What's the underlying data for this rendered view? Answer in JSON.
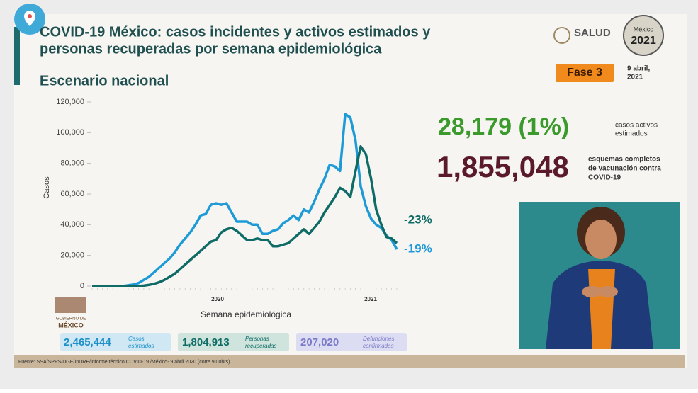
{
  "header": {
    "title": [
      "COVID-19 México: casos incidentes y activos estimados y",
      "personas recuperadas por semana epidemiológica"
    ],
    "subtitle": "Escenario nacional",
    "ministry": "SALUD",
    "logo": [
      "México",
      "2021"
    ],
    "phase": "Fase 3",
    "date": [
      "9 abril,",
      "2021"
    ]
  },
  "stats": {
    "active": {
      "value": "28,179 (1%)",
      "label": [
        "casos activos",
        "estimados"
      ]
    },
    "vaccination": {
      "value": "1,855,048",
      "label": [
        "esquemas completos",
        "de vacunación contra",
        "COVID-19"
      ]
    }
  },
  "chart_data": {
    "type": "line",
    "ylabel": "Casos",
    "xlabel": "Semana epidemiológica",
    "year_labels": [
      "2020",
      "2021"
    ],
    "categories": [
      null,
      null,
      null,
      null,
      null,
      null,
      null,
      null,
      null,
      null,
      null,
      null,
      null,
      null,
      null,
      null,
      null,
      null,
      null,
      null,
      null,
      null,
      null,
      null,
      null,
      null,
      null,
      null,
      null,
      null,
      null,
      null,
      null,
      null,
      null,
      null,
      null,
      null,
      null,
      null,
      null,
      null,
      null,
      null,
      null,
      null,
      null,
      null,
      null,
      null,
      null,
      null,
      null,
      null,
      null,
      null,
      null,
      null,
      null,
      null
    ],
    "series": [
      {
        "color": "#1e9bd7",
        "values": [
          0,
          0,
          0,
          0,
          0,
          0,
          0,
          500,
          1000,
          2000,
          4000,
          6000,
          9000,
          12000,
          15000,
          18000,
          22000,
          27000,
          31000,
          35000,
          40000,
          46000,
          47000,
          53000,
          54000,
          53000,
          54000,
          48000,
          42000,
          42000,
          42000,
          40000,
          40000,
          34000,
          34000,
          36000,
          37000,
          41000,
          43000,
          46000,
          43000,
          50000,
          48000,
          55000,
          63000,
          70000,
          79000,
          78000,
          75000,
          112000,
          110000,
          95000,
          65000,
          52000,
          44000,
          40000,
          38000,
          33000,
          30000,
          24000
        ]
      },
      {
        "color": "#0f6b66",
        "values": [
          0,
          0,
          0,
          0,
          0,
          0,
          0,
          0,
          0,
          0,
          300,
          800,
          1500,
          2500,
          4000,
          6000,
          8000,
          11000,
          14000,
          17000,
          20000,
          23000,
          26000,
          29000,
          30000,
          35000,
          37000,
          38000,
          36000,
          33000,
          30000,
          30000,
          31000,
          30000,
          30000,
          26000,
          26000,
          27000,
          28000,
          31000,
          34000,
          37000,
          34000,
          38000,
          42000,
          48000,
          53000,
          58000,
          64000,
          62000,
          58000,
          75000,
          91000,
          86000,
          70000,
          50000,
          40000,
          32000,
          31000,
          28000
        ]
      }
    ],
    "annotations": [
      "-23%",
      "-19%"
    ],
    "ylim": [
      0,
      120000
    ],
    "yticks": [
      0,
      {
        "value": 20000,
        "label": "20,000"
      },
      {
        "value": 40000,
        "label": "40,000"
      },
      {
        "value": 60000,
        "label": "60,000"
      },
      {
        "value": 80000,
        "label": "80,000"
      },
      {
        "value": 100000,
        "label": "100,000"
      },
      {
        "value": 120000,
        "label": "120,000"
      }
    ]
  },
  "footer_boxes": [
    {
      "value": "2,465,444",
      "label": [
        "Casos",
        "estimados"
      ]
    },
    {
      "value": "1,804,913",
      "label": [
        "Personas",
        "recuperadas"
      ]
    },
    {
      "value": "207,020",
      "label": [
        "Defunciones",
        "confirmadas"
      ]
    }
  ],
  "source": "Fuente: SSA/SPPS/DGE/InDRE/Informe técnico.COVID-19 /México- 9 abril 2020 (corte 9:00hrs)",
  "gov_logo": [
    "GOBIERNO DE",
    "MÉXICO"
  ]
}
